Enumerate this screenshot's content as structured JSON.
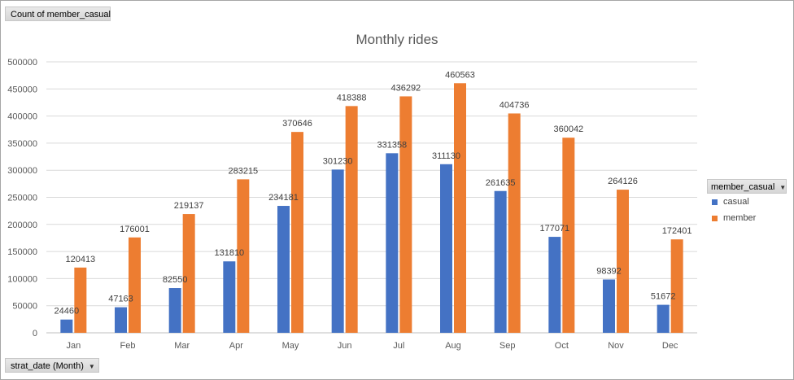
{
  "value_field_button": "Count of member_casual",
  "axis_field_button": "strat_date (Month)",
  "legend": {
    "field": "member_casual",
    "items": [
      {
        "label": "casual",
        "color": "#4472c4"
      },
      {
        "label": "member",
        "color": "#ed7d31"
      }
    ]
  },
  "chart_data": {
    "type": "bar",
    "title": "Monthly rides",
    "xlabel": "",
    "ylabel": "",
    "ylim": [
      0,
      500000
    ],
    "yticks": [
      0,
      50000,
      100000,
      150000,
      200000,
      250000,
      300000,
      350000,
      400000,
      450000,
      500000
    ],
    "ytick_labels": [
      "0",
      "50000",
      "100000",
      "150000",
      "200000",
      "250000",
      "300000",
      "350000",
      "400000",
      "450000",
      "500000"
    ],
    "grid": true,
    "legend_position": "right",
    "categories": [
      "Jan",
      "Feb",
      "Mar",
      "Apr",
      "May",
      "Jun",
      "Jul",
      "Aug",
      "Sep",
      "Oct",
      "Nov",
      "Dec"
    ],
    "series": [
      {
        "name": "casual",
        "color": "#4472c4",
        "values": [
          24460,
          47163,
          82550,
          131810,
          234181,
          301230,
          331358,
          311130,
          261635,
          177071,
          98392,
          51672
        ]
      },
      {
        "name": "member",
        "color": "#ed7d31",
        "values": [
          120413,
          176001,
          219137,
          283215,
          370646,
          418388,
          436292,
          460563,
          404736,
          360042,
          264126,
          172401
        ]
      }
    ]
  }
}
